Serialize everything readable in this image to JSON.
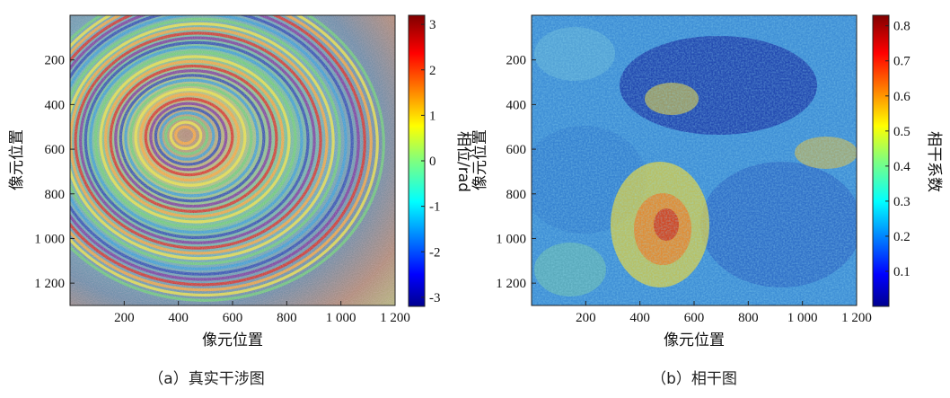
{
  "panels": [
    {
      "caption": "（a）真实干涉图",
      "xlabel": "像元位置",
      "ylabel": "像元位置",
      "x_ticks": [
        "200",
        "400",
        "600",
        "800",
        "1 000",
        "1 200"
      ],
      "y_ticks": [
        "200",
        "400",
        "600",
        "800",
        "1 000",
        "1 200"
      ],
      "colorbar": {
        "label": "相位/rad",
        "ticks": [
          "3",
          "2",
          "1",
          "0",
          "-1",
          "-2",
          "-3"
        ]
      }
    },
    {
      "caption": "（b）相干图",
      "xlabel": "像元位置",
      "ylabel": "像元位置",
      "x_ticks": [
        "200",
        "400",
        "600",
        "800",
        "1 000",
        "1 200"
      ],
      "y_ticks": [
        "200",
        "400",
        "600",
        "800",
        "1 000",
        "1 200"
      ],
      "colorbar": {
        "label": "相干系数",
        "ticks": [
          "0.8",
          "0.7",
          "0.6",
          "0.5",
          "0.4",
          "0.3",
          "0.2",
          "0.1"
        ]
      }
    }
  ],
  "chart_data": [
    {
      "type": "heatmap",
      "description_of_field": "interferometric phase",
      "xlim": [
        0,
        1200
      ],
      "ylim": [
        1300,
        0
      ],
      "x_ticks": [
        200,
        400,
        600,
        800,
        1000,
        1200
      ],
      "y_ticks": [
        200,
        400,
        600,
        800,
        1000,
        1200
      ],
      "colorbar_range": [
        -3.2,
        3.2
      ],
      "colorbar_ticks": [
        3,
        2,
        1,
        0,
        -1,
        -2,
        -3
      ],
      "colormap": "jet"
    },
    {
      "type": "heatmap",
      "description_of_field": "coherence",
      "xlim": [
        0,
        1200
      ],
      "ylim": [
        1300,
        0
      ],
      "x_ticks": [
        200,
        400,
        600,
        800,
        1000,
        1200
      ],
      "y_ticks": [
        200,
        400,
        600,
        800,
        1000,
        1200
      ],
      "colorbar_range": [
        0,
        0.83
      ],
      "colorbar_ticks": [
        0.8,
        0.7,
        0.6,
        0.5,
        0.4,
        0.3,
        0.2,
        0.1
      ],
      "colormap": "jet"
    }
  ]
}
